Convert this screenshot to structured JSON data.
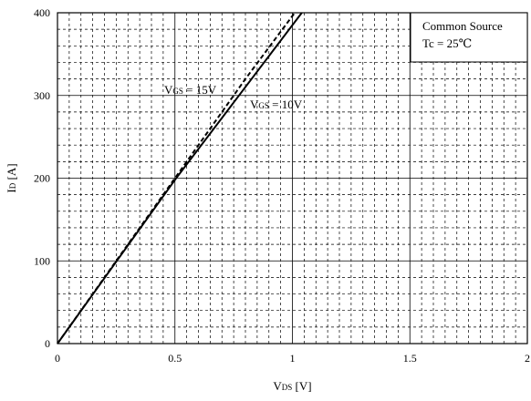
{
  "chart_data": {
    "type": "line",
    "xlabel": {
      "main": "V",
      "sub": "DS",
      "unit": " [V]"
    },
    "ylabel": {
      "main": "I",
      "sub": "D",
      "unit": " [A]"
    },
    "xlim": [
      0,
      2
    ],
    "ylim": [
      0,
      400
    ],
    "x_ticks": [
      "0",
      "0.5",
      "1",
      "1.5",
      "2"
    ],
    "y_ticks": [
      "0",
      "100",
      "200",
      "300",
      "400"
    ],
    "grid": {
      "major": "solid",
      "minor": "dashed"
    },
    "legend_box": {
      "position": "top-right",
      "lines": [
        "Common Source",
        "Tc = 25℃"
      ]
    },
    "series": [
      {
        "name": "VGS = 15V",
        "label_main": "V",
        "label_sub": "GS",
        "label_rest": " = 15V",
        "style": "dashed",
        "points": [
          [
            0,
            0
          ],
          [
            0.4,
            160
          ],
          [
            0.8,
            320
          ],
          [
            1.01,
            400
          ]
        ]
      },
      {
        "name": "VGS = 10V",
        "label_main": "V",
        "label_sub": "GS",
        "label_rest": " = 10V",
        "style": "solid",
        "points": [
          [
            0,
            0
          ],
          [
            0.5,
            198
          ],
          [
            1.04,
            400
          ]
        ]
      }
    ]
  }
}
